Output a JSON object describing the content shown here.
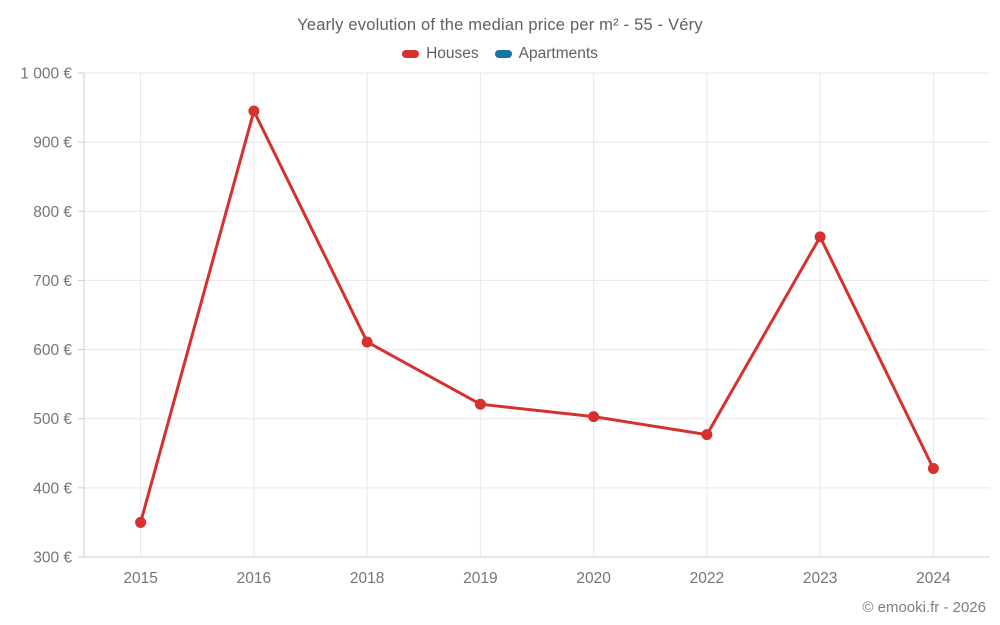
{
  "title": "Yearly evolution of the median price per m² - 55 - Véry",
  "legend": {
    "items": [
      {
        "label": "Houses",
        "color": "#d6312e"
      },
      {
        "label": "Apartments",
        "color": "#17739f"
      }
    ]
  },
  "footer": {
    "copyright": "© emooki.fr - 2026"
  },
  "colors": {
    "grid": "#e8e8e8",
    "axis": "#cfcfcf",
    "tick_text": "#757575",
    "title_text": "#606060",
    "houses": "#d6312e",
    "apartments": "#17739f",
    "background": "#ffffff"
  },
  "chart_data": {
    "type": "line",
    "title": "Yearly evolution of the median price per m² - 55 - Véry",
    "categories": [
      "2015",
      "2016",
      "2018",
      "2019",
      "2020",
      "2022",
      "2023",
      "2024"
    ],
    "series": [
      {
        "name": "Houses",
        "color": "#d6312e",
        "values": [
          350,
          945,
          611,
          521,
          503,
          477,
          763,
          428
        ]
      },
      {
        "name": "Apartments",
        "color": "#17739f",
        "values": []
      }
    ],
    "xlabel": "",
    "ylabel": "",
    "ylim": [
      300,
      1000
    ],
    "ytick_step": 100,
    "ytick_labels": [
      "300 €",
      "400 €",
      "500 €",
      "600 €",
      "700 €",
      "800 €",
      "900 €",
      "1 000 €"
    ],
    "grid": true,
    "legend_position": "top",
    "marker": "circle",
    "unit": "€"
  }
}
